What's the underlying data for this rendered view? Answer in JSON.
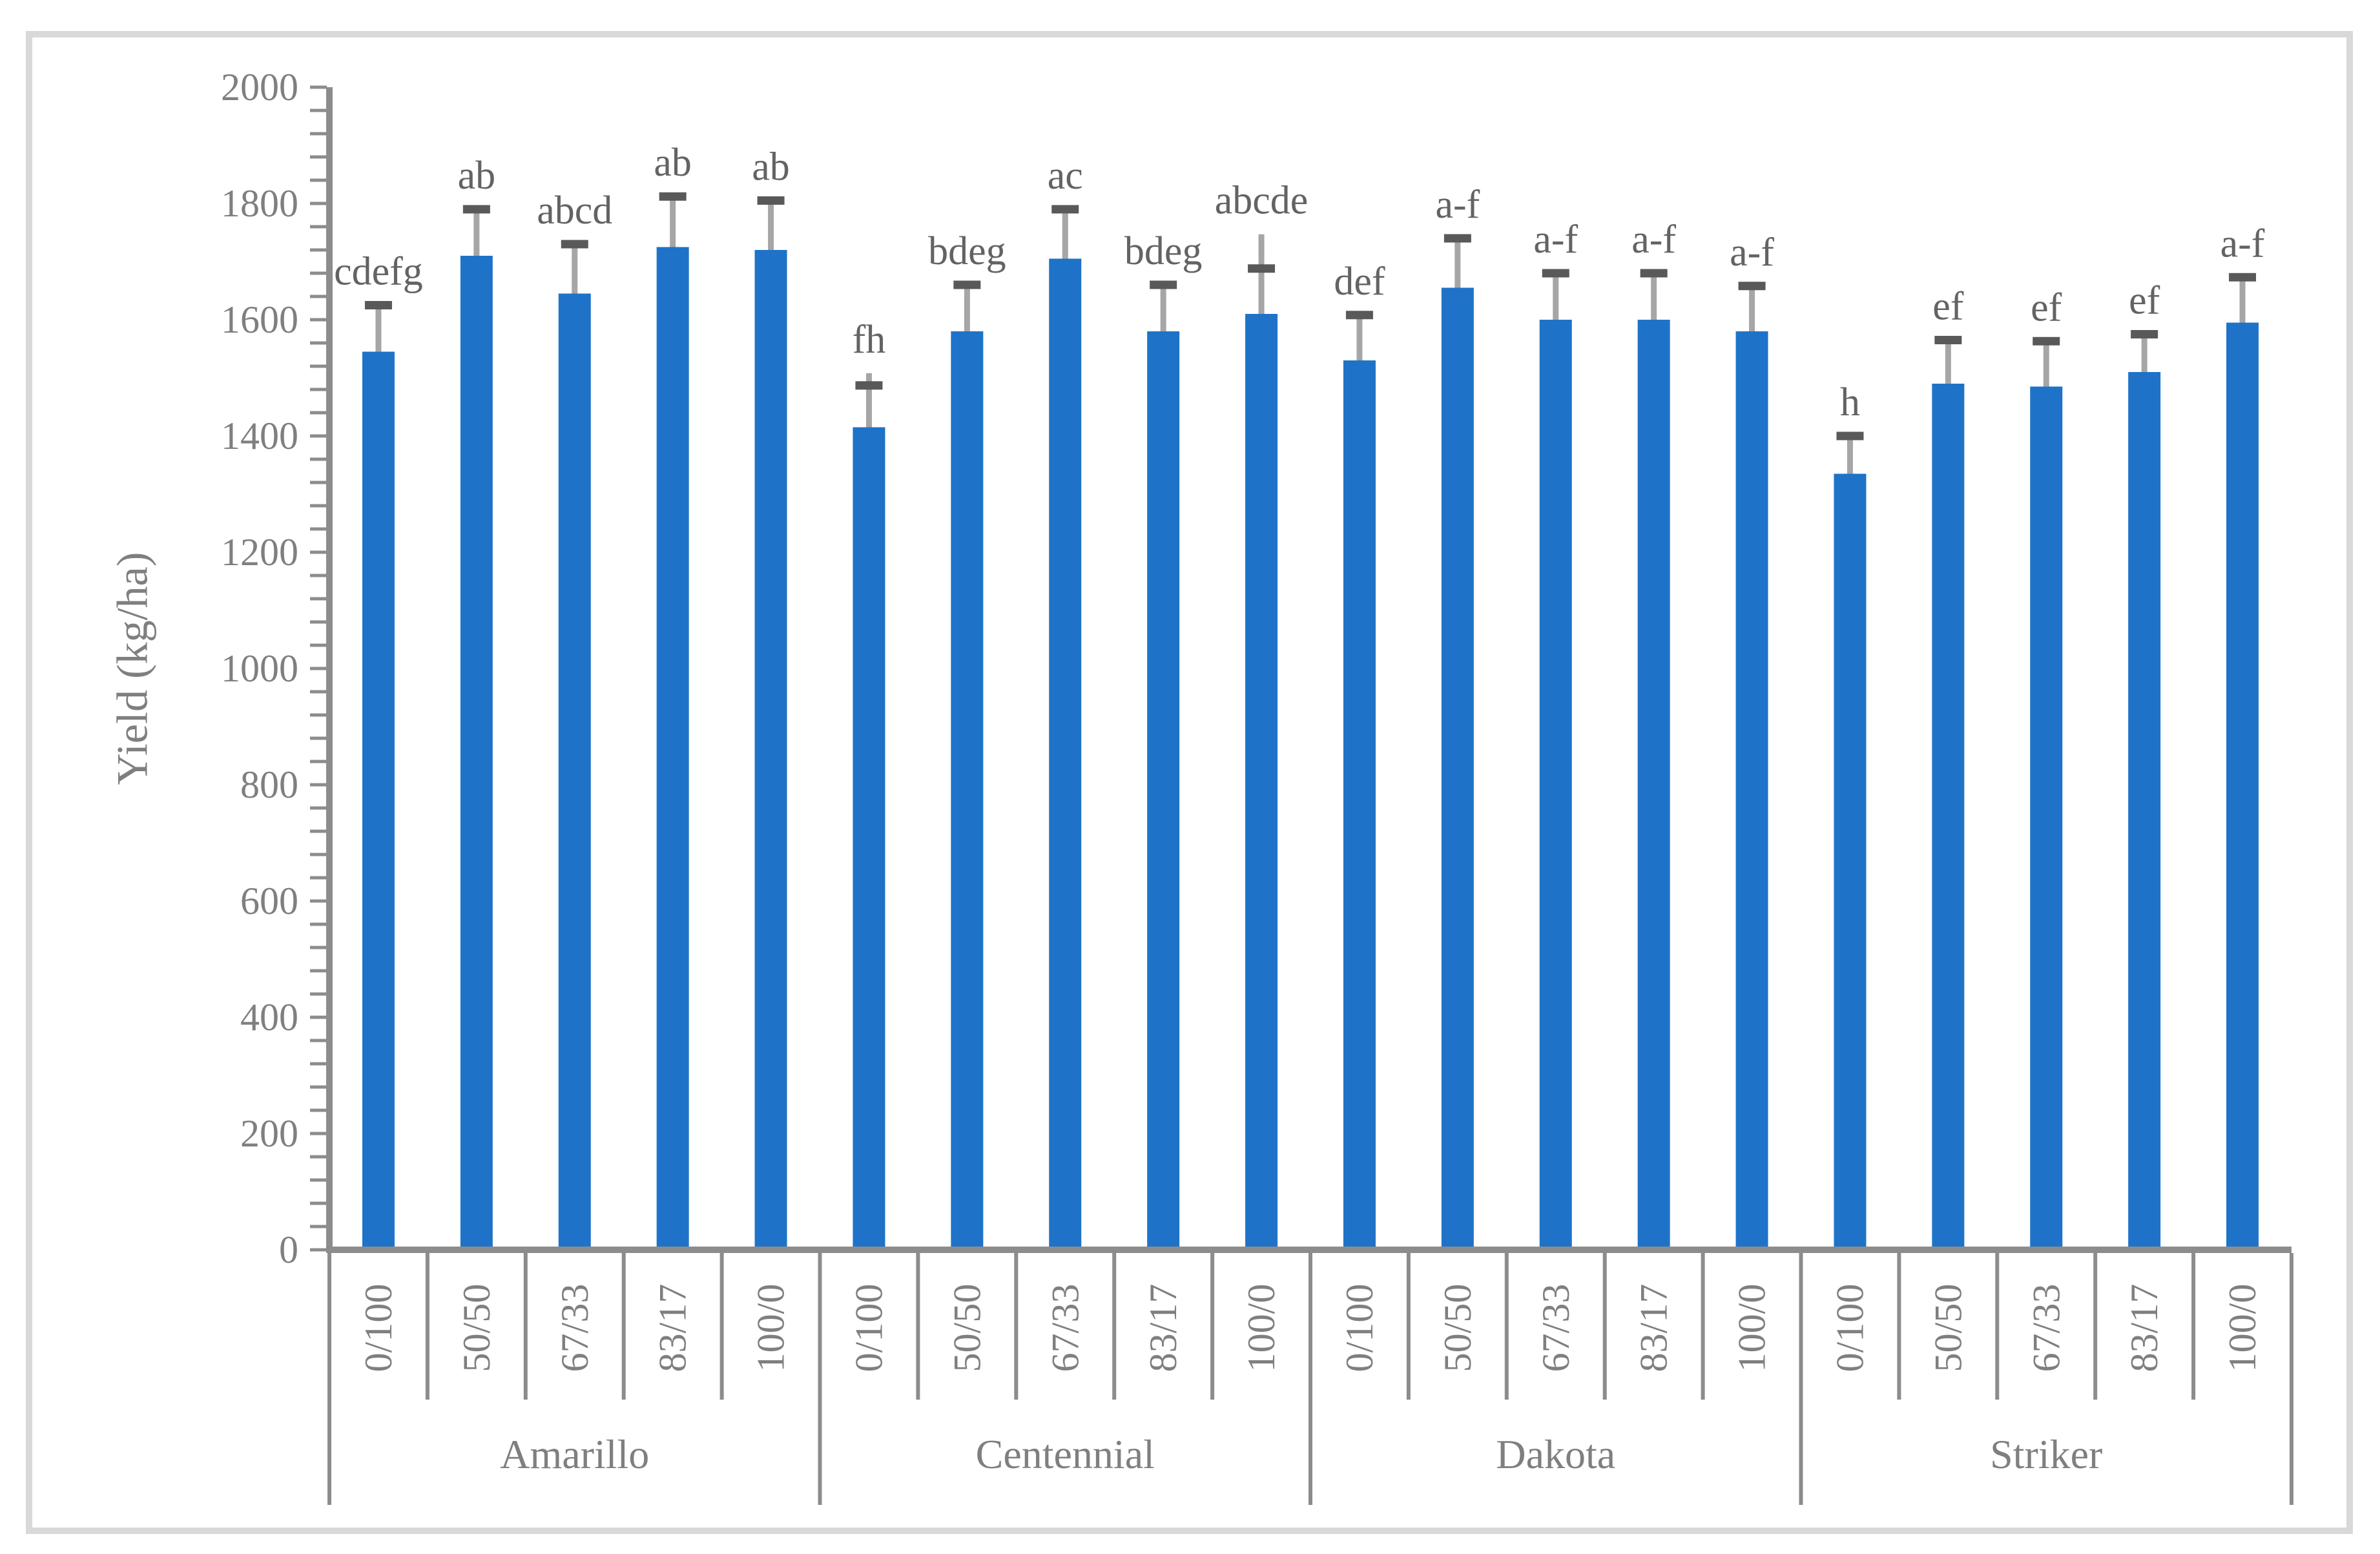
{
  "chart_data": {
    "type": "bar",
    "title": "",
    "ylabel": "Yield (kg/ha)",
    "xlabel": "",
    "ylim": [
      0,
      2000
    ],
    "y_tick_interval": 200,
    "y_minor_tick_interval": 40,
    "y_tick_labels": [
      "0",
      "200",
      "400",
      "600",
      "800",
      "1000",
      "1200",
      "1400",
      "1600",
      "1800",
      "2000"
    ],
    "grid": false,
    "legend": null,
    "treatments": [
      "0/100",
      "50/50",
      "67/33",
      "83/17",
      "100/0"
    ],
    "groups": [
      {
        "cultivar": "Amarillo",
        "bars": [
          {
            "treatment": "0/100",
            "value": 1545,
            "error_top": 1625,
            "whisker_top": 1625,
            "letter": "cdefg"
          },
          {
            "treatment": "50/50",
            "value": 1710,
            "error_top": 1790,
            "whisker_top": 1790,
            "letter": "ab"
          },
          {
            "treatment": "67/33",
            "value": 1645,
            "error_top": 1730,
            "whisker_top": 1730,
            "letter": "abcd"
          },
          {
            "treatment": "83/17",
            "value": 1725,
            "error_top": 1812,
            "whisker_top": 1812,
            "letter": "ab"
          },
          {
            "treatment": "100/0",
            "value": 1720,
            "error_top": 1805,
            "whisker_top": 1805,
            "letter": "ab"
          }
        ]
      },
      {
        "cultivar": "Centennial",
        "bars": [
          {
            "treatment": "0/100",
            "value": 1415,
            "error_top": 1487,
            "whisker_top": 1508,
            "letter": "fh"
          },
          {
            "treatment": "50/50",
            "value": 1580,
            "error_top": 1660,
            "whisker_top": 1660,
            "letter": "bdeg"
          },
          {
            "treatment": "67/33",
            "value": 1705,
            "error_top": 1790,
            "whisker_top": 1790,
            "letter": "ac"
          },
          {
            "treatment": "83/17",
            "value": 1580,
            "error_top": 1660,
            "whisker_top": 1660,
            "letter": "bdeg"
          },
          {
            "treatment": "100/0",
            "value": 1610,
            "error_top": 1688,
            "whisker_top": 1747,
            "letter": "abcde"
          }
        ]
      },
      {
        "cultivar": "Dakota",
        "bars": [
          {
            "treatment": "0/100",
            "value": 1530,
            "error_top": 1608,
            "whisker_top": 1608,
            "letter": "def"
          },
          {
            "treatment": "50/50",
            "value": 1655,
            "error_top": 1740,
            "whisker_top": 1740,
            "letter": "a-f"
          },
          {
            "treatment": "67/33",
            "value": 1600,
            "error_top": 1680,
            "whisker_top": 1680,
            "letter": "a-f"
          },
          {
            "treatment": "83/17",
            "value": 1600,
            "error_top": 1680,
            "whisker_top": 1680,
            "letter": "a-f"
          },
          {
            "treatment": "100/0",
            "value": 1580,
            "error_top": 1658,
            "whisker_top": 1658,
            "letter": "a-f"
          }
        ]
      },
      {
        "cultivar": "Striker",
        "bars": [
          {
            "treatment": "0/100",
            "value": 1335,
            "error_top": 1400,
            "whisker_top": 1400,
            "letter": "h"
          },
          {
            "treatment": "50/50",
            "value": 1490,
            "error_top": 1565,
            "whisker_top": 1565,
            "letter": "ef"
          },
          {
            "treatment": "67/33",
            "value": 1485,
            "error_top": 1563,
            "whisker_top": 1563,
            "letter": "ef"
          },
          {
            "treatment": "83/17",
            "value": 1510,
            "error_top": 1575,
            "whisker_top": 1575,
            "letter": "ef"
          },
          {
            "treatment": "100/0",
            "value": 1595,
            "error_top": 1673,
            "whisker_top": 1673,
            "letter": "a-f"
          }
        ]
      }
    ]
  },
  "style": {
    "bar_color": "#1e73c8",
    "error_line_color": "#a6a6a6",
    "error_cap_color": "#595959",
    "axis_color": "#8c8c8c",
    "text_color": "#7f7f7f",
    "letter_color": "#636363",
    "frame_border_color": "#d9d9d9",
    "background": "#ffffff"
  }
}
